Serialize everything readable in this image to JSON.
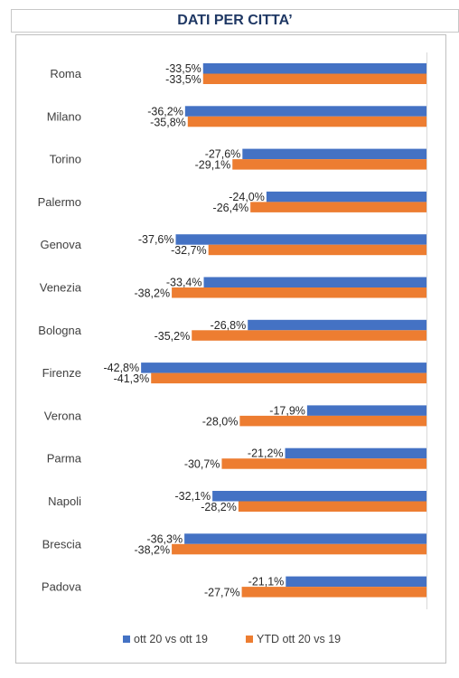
{
  "title": "DATI PER CITTA’",
  "chart_data": {
    "type": "bar",
    "orientation": "horizontal",
    "categories": [
      "Roma",
      "Milano",
      "Torino",
      "Palermo",
      "Genova",
      "Venezia",
      "Bologna",
      "Firenze",
      "Verona",
      "Parma",
      "Napoli",
      "Brescia",
      "Padova"
    ],
    "series": [
      {
        "name": "ott 20 vs ott 19",
        "color": "#4472c4",
        "values": [
          -33.5,
          -36.2,
          -27.6,
          -24.0,
          -37.6,
          -33.4,
          -26.8,
          -42.8,
          -17.9,
          -21.2,
          -32.1,
          -36.3,
          -21.1
        ],
        "labels": [
          "-33,5%",
          "-36,2%",
          "-27,6%",
          "-24,0%",
          "-37,6%",
          "-33,4%",
          "-26,8%",
          "-42,8%",
          "-17,9%",
          "-21,2%",
          "-32,1%",
          "-36,3%",
          "-21,1%"
        ]
      },
      {
        "name": "YTD ott 20 vs 19",
        "color": "#ed7d31",
        "values": [
          -33.5,
          -35.8,
          -29.1,
          -26.4,
          -32.7,
          -38.2,
          -35.2,
          -41.3,
          -28.0,
          -30.7,
          -28.2,
          -38.2,
          -27.7
        ],
        "labels": [
          "-33,5%",
          "-35,8%",
          "-29,1%",
          "-26,4%",
          "-32,7%",
          "-38,2%",
          "-35,2%",
          "-41,3%",
          "-28,0%",
          "-30,7%",
          "-28,2%",
          "-38,2%",
          "-27,7%"
        ]
      }
    ],
    "xlim": [
      -46,
      0
    ],
    "grid": false,
    "legend_position": "bottom"
  }
}
